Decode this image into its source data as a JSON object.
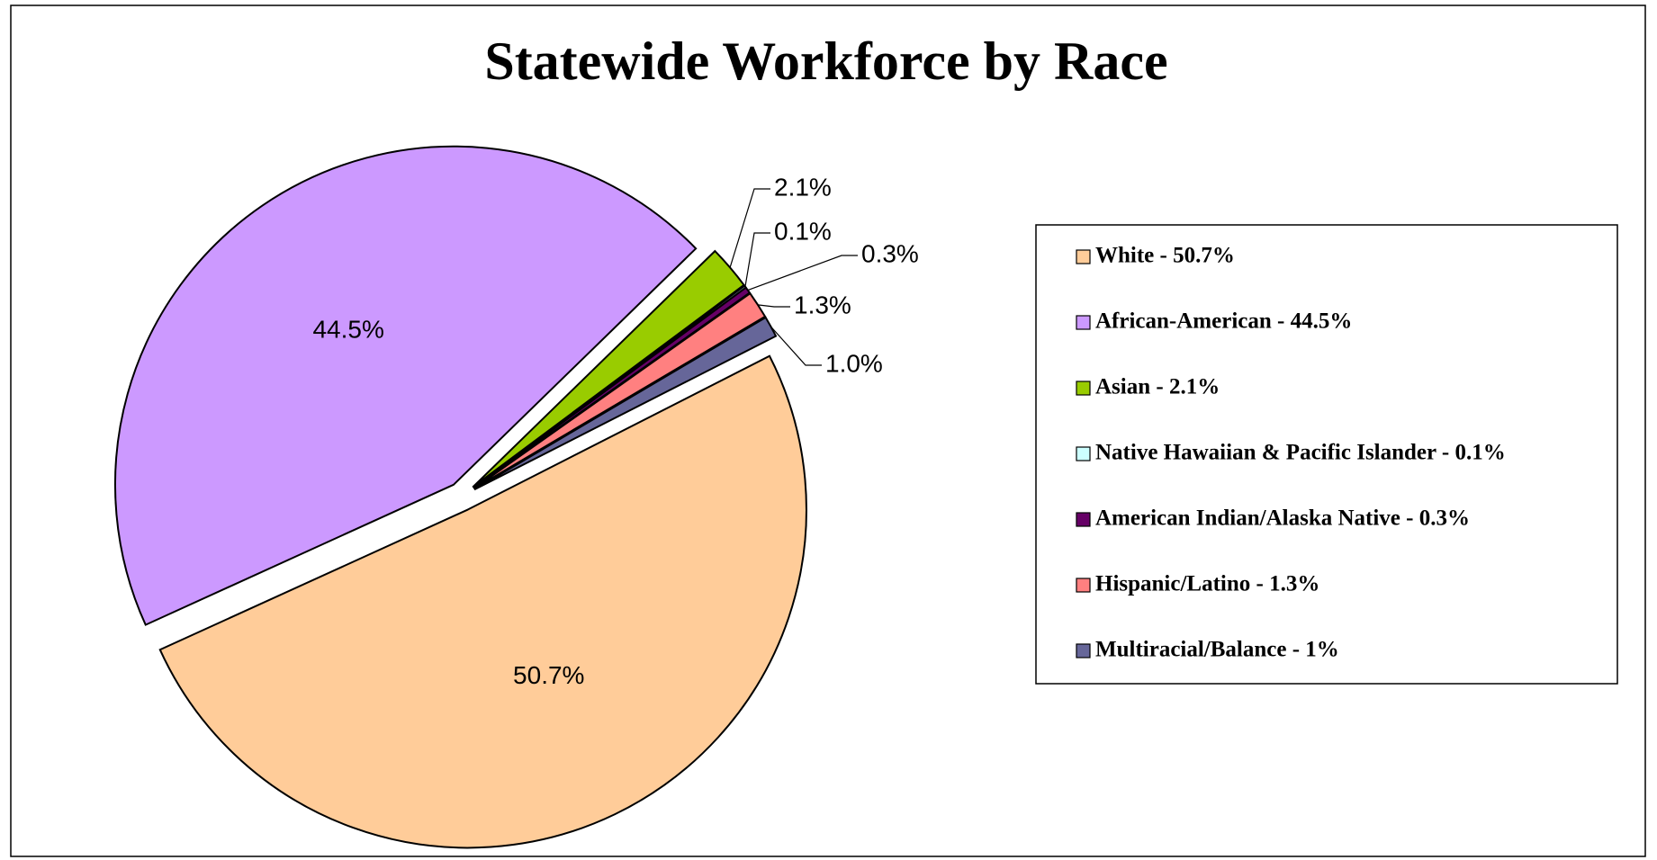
{
  "chart_data": {
    "type": "pie",
    "title": "Statewide Workforce by Race",
    "categories": [
      "White - 50.7%",
      "African-American - 44.5%",
      "Asian - 2.1%",
      "Native Hawaiian & Pacific Islander - 0.1%",
      "American Indian/Alaska Native - 0.3%",
      "Hispanic/Latino - 1.3%",
      "Multiracial/Balance - 1%"
    ],
    "values": [
      50.7,
      44.5,
      2.1,
      0.1,
      0.3,
      1.3,
      1.0
    ],
    "value_labels": [
      "50.7%",
      "44.5%",
      "2.1%",
      "0.1%",
      "0.3%",
      "1.3%",
      "1.0%"
    ],
    "colors": [
      "#FFCC99",
      "#CC99FF",
      "#99CC00",
      "#CCFFFF",
      "#660066",
      "#FF8080",
      "#666699"
    ],
    "legend": "right"
  }
}
